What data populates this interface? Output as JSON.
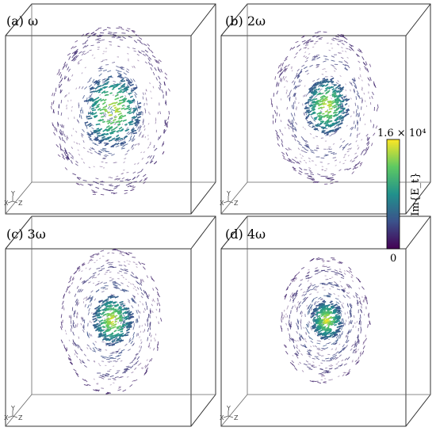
{
  "panels": [
    {
      "label": "(a) ω",
      "harmonic": 1
    },
    {
      "label": "(b) 2ω",
      "harmonic": 2
    },
    {
      "label": "(c) 3ω",
      "harmonic": 3
    },
    {
      "label": "(d) 4ω",
      "harmonic": 4
    }
  ],
  "axis_triad": {
    "x": "X",
    "y": "Y",
    "z": "Z"
  },
  "colorbar": {
    "max_label": "1.6 × 10⁴",
    "min_label": "0",
    "title": "Im{E_t}",
    "colormap": [
      "#440154",
      "#3b528b",
      "#21918c",
      "#5ec962",
      "#fde725"
    ]
  }
}
